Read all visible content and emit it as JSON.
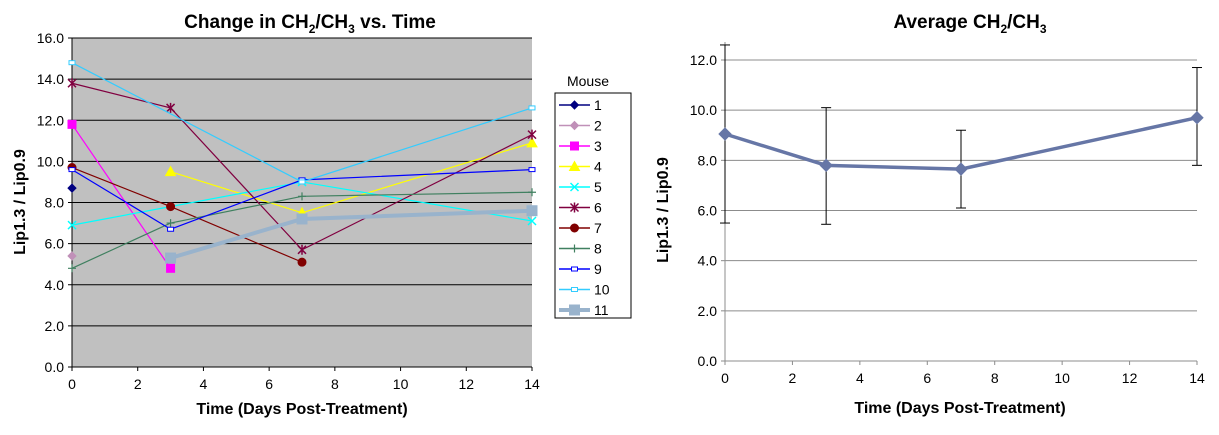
{
  "chart_data": [
    {
      "type": "line",
      "title_parts": [
        "Change in CH",
        "2",
        "/CH",
        "3",
        " vs. Time"
      ],
      "xlabel": "Time (Days Post-Treatment)",
      "ylabel": "Lip1.3 / Lip0.9",
      "xlim": [
        0,
        14
      ],
      "ylim": [
        0,
        16
      ],
      "xticks": [
        0,
        2,
        4,
        6,
        8,
        10,
        12,
        14
      ],
      "yticks": [
        0,
        2,
        4,
        6,
        8,
        10,
        12,
        14,
        16
      ],
      "xtick_labels": [
        "0",
        "2",
        "4",
        "6",
        "8",
        "10",
        "12",
        "14"
      ],
      "ytick_labels": [
        "0.0",
        "2.0",
        "4.0",
        "6.0",
        "8.0",
        "10.0",
        "12.0",
        "14.0",
        "16.0"
      ],
      "plot_background": "#c0c0c0",
      "grid": true,
      "legend_title": "Mouse",
      "legend_position": "right",
      "series": [
        {
          "name": "1",
          "color": "#000080",
          "marker": "diamond",
          "points": [
            [
              0,
              8.7
            ]
          ]
        },
        {
          "name": "2",
          "color": "#c090b8",
          "marker": "diamond",
          "points": [
            [
              0,
              5.4
            ]
          ]
        },
        {
          "name": "3",
          "color": "#ff00ff",
          "marker": "square",
          "points": [
            [
              0,
              11.8
            ],
            [
              3,
              4.8
            ]
          ]
        },
        {
          "name": "4",
          "color": "#ffff00",
          "marker": "triangle",
          "points": [
            [
              3,
              9.5
            ],
            [
              7,
              7.5
            ],
            [
              14,
              10.9
            ]
          ]
        },
        {
          "name": "5",
          "color": "#00ffff",
          "marker": "x",
          "points": [
            [
              0,
              6.9
            ],
            [
              7,
              9.0
            ],
            [
              14,
              7.1
            ]
          ]
        },
        {
          "name": "6",
          "color": "#800040",
          "marker": "star",
          "points": [
            [
              0,
              13.8
            ],
            [
              3,
              12.6
            ],
            [
              7,
              5.7
            ],
            [
              14,
              11.3
            ]
          ]
        },
        {
          "name": "7",
          "color": "#800000",
          "marker": "circle",
          "points": [
            [
              0,
              9.7
            ],
            [
              3,
              7.8
            ],
            [
              7,
              5.1
            ]
          ]
        },
        {
          "name": "8",
          "color": "#408060",
          "marker": "plus",
          "points": [
            [
              0,
              4.8
            ],
            [
              3,
              7.0
            ],
            [
              7,
              8.3
            ],
            [
              14,
              8.5
            ]
          ]
        },
        {
          "name": "9",
          "color": "#0000ff",
          "marker": "hsquare",
          "points": [
            [
              0,
              9.6
            ],
            [
              3,
              6.7
            ],
            [
              7,
              9.1
            ],
            [
              14,
              9.6
            ]
          ]
        },
        {
          "name": "10",
          "color": "#33ccff",
          "marker": "hsquare",
          "points": [
            [
              0,
              14.8
            ],
            [
              7,
              9.0
            ],
            [
              14,
              12.6
            ]
          ]
        },
        {
          "name": "11",
          "color": "#99b3cc",
          "marker": "square",
          "thick": true,
          "points": [
            [
              3,
              5.3
            ],
            [
              7,
              7.2
            ],
            [
              14,
              7.6
            ]
          ]
        }
      ]
    },
    {
      "type": "line",
      "title_parts": [
        "Average CH",
        "2",
        "/CH",
        "3"
      ],
      "xlabel": "Time (Days Post-Treatment)",
      "ylabel": "Lip1.3 / Lip0.9",
      "xlim": [
        0,
        14
      ],
      "ylim": [
        0,
        12
      ],
      "xticks": [
        0,
        2,
        4,
        6,
        8,
        10,
        12,
        14
      ],
      "yticks": [
        0,
        2,
        4,
        6,
        8,
        10,
        12
      ],
      "xtick_labels": [
        "0",
        "2",
        "4",
        "6",
        "8",
        "10",
        "12",
        "14"
      ],
      "ytick_labels": [
        "0.0",
        "2.0",
        "4.0",
        "6.0",
        "8.0",
        "10.0",
        "12.0"
      ],
      "grid": true,
      "series": [
        {
          "name": "Average",
          "color": "#6676a6",
          "x": [
            0,
            3,
            7,
            14
          ],
          "y": [
            9.05,
            7.8,
            7.65,
            9.7
          ],
          "error_low": [
            5.5,
            5.45,
            6.1,
            7.8
          ],
          "error_high": [
            12.6,
            10.1,
            9.2,
            11.7
          ]
        }
      ]
    }
  ]
}
